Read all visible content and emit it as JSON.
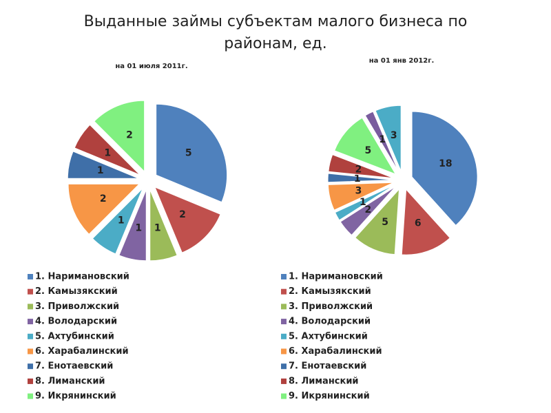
{
  "title": "Выданные займы субъектам малого бизнеса по районам, ед.",
  "chart_data": [
    {
      "type": "pie",
      "title": "на 01 июля 2011г.",
      "categories": [
        "1. Наримановский",
        "2. Камызякский",
        "3. Приволжский",
        "4. Володарский",
        "5. Ахтубинский",
        "6. Харабалинский",
        "7. Енотаевский",
        "8. Лиманский",
        "9. Икрянинский"
      ],
      "values": [
        5,
        2,
        1,
        1,
        1,
        2,
        1,
        1,
        2
      ],
      "colors": [
        "#4f81bd",
        "#c0504d",
        "#9bbb59",
        "#8064a2",
        "#4bacc6",
        "#f79646",
        "#3f6fa8",
        "#b0413e",
        "#80f080"
      ]
    },
    {
      "type": "pie",
      "title": "на 01 янв 2012г.",
      "categories": [
        "1. Наримановский",
        "2. Камызякский",
        "3. Приволжский",
        "4. Володарский",
        "5. Ахтубинский",
        "6. Харабалинский",
        "7. Енотаевский",
        "8. Лиманский",
        "9. Икрянинский",
        null,
        null
      ],
      "values": [
        18,
        6,
        5,
        2,
        1,
        3,
        1,
        2,
        5,
        1,
        3
      ],
      "colors": [
        "#4f81bd",
        "#c0504d",
        "#9bbb59",
        "#8064a2",
        "#4bacc6",
        "#f79646",
        "#3f6fa8",
        "#b0413e",
        "#80f080",
        "#7a5c9e",
        "#4bacc6"
      ]
    }
  ]
}
